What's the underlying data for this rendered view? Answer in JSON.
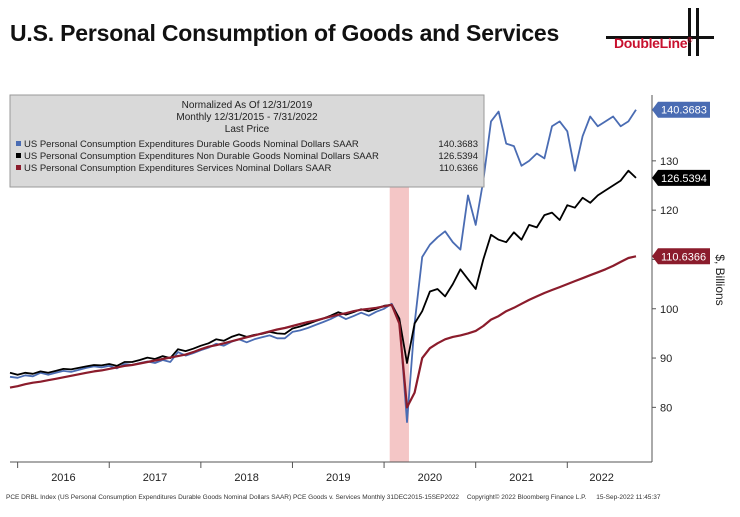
{
  "header": {
    "title": "U.S. Personal Consumption of Goods and Services",
    "logo_text": "DoubleLine",
    "logo_mark": "®"
  },
  "legend": {
    "line1": "Normalized As Of 12/31/2019",
    "line2": "Monthly 12/31/2015 - 7/31/2022",
    "line3": "Last Price"
  },
  "footer": {
    "source": "PCE DRBL Index (US Personal Consumption Expenditures Durable Goods Nominal Dollars SAAR) PCE Goods v. Services  Monthly 31DEC2015-15SEP2022",
    "copyright": "Copyright© 2022 Bloomberg Finance L.P.",
    "timestamp": "15-Sep-2022 11:45:37"
  },
  "colors": {
    "durable": "#4a6cb3",
    "nondurable": "#000000",
    "services": "#8b1c2c",
    "recession": "#f0b3b3"
  },
  "chart_data": {
    "type": "line",
    "title": "",
    "ylabel": "$, Billions",
    "xlabel": "",
    "x_start": "2015-12",
    "x_end": "2022-07",
    "frequency": "monthly",
    "ylim": [
      75,
      145
    ],
    "y_ticks": [
      80,
      90,
      100,
      110,
      120,
      130
    ],
    "x_tick_labels": [
      "2016",
      "2017",
      "2018",
      "2019",
      "2020",
      "2021",
      "2022"
    ],
    "recession_shading": {
      "start": "2020-02",
      "end": "2020-04"
    },
    "series": [
      {
        "name": "US Personal Consumption Expenditures Durable Goods Nominal Dollars SAAR",
        "last": "140.3683",
        "values": [
          86.2,
          86.0,
          86.5,
          86.3,
          87.0,
          86.6,
          87.0,
          87.4,
          87.2,
          87.6,
          88.0,
          88.3,
          88.1,
          88.4,
          87.9,
          88.8,
          88.6,
          89.0,
          89.3,
          89.0,
          89.6,
          89.2,
          91.2,
          90.5,
          91.0,
          91.6,
          92.1,
          92.9,
          92.5,
          93.3,
          93.8,
          93.2,
          93.8,
          94.2,
          94.6,
          94.0,
          94.0,
          95.3,
          95.6,
          96.1,
          96.7,
          97.3,
          97.9,
          98.7,
          97.9,
          98.5,
          99.2,
          98.6,
          99.4,
          100.0,
          101.0,
          98.0,
          77.0,
          97.0,
          110.5,
          113.0,
          114.5,
          115.7,
          113.5,
          112.0,
          123.0,
          117.0,
          126.0,
          138.0,
          140.0,
          133.5,
          133.0,
          129.0,
          130.0,
          131.5,
          130.5,
          137.0,
          138.0,
          136.0,
          128.0,
          135.0,
          139.0,
          137.0,
          138.0,
          139.0,
          137.0,
          138.0,
          140.3683
        ]
      },
      {
        "name": "US Personal Consumption Expenditures Non Durable Goods Nominal Dollars SAAR",
        "last": "126.5394",
        "values": [
          87.0,
          86.6,
          87.0,
          86.8,
          87.3,
          87.0,
          87.4,
          87.8,
          87.7,
          88.0,
          88.3,
          88.6,
          88.5,
          88.8,
          88.4,
          89.2,
          89.2,
          89.6,
          90.1,
          89.8,
          90.4,
          90.0,
          91.8,
          91.4,
          91.9,
          92.5,
          93.0,
          93.8,
          93.5,
          94.3,
          94.8,
          94.3,
          94.7,
          94.9,
          95.3,
          95.0,
          94.9,
          96.0,
          96.4,
          96.9,
          97.5,
          98.0,
          98.6,
          99.3,
          98.8,
          99.3,
          99.9,
          99.5,
          100.0,
          100.6,
          100.8,
          98.0,
          89.0,
          97.0,
          99.5,
          103.5,
          104.0,
          102.5,
          105.0,
          108.0,
          106.0,
          104.0,
          110.0,
          115.0,
          114.0,
          113.5,
          115.5,
          114.0,
          117.0,
          116.5,
          119.0,
          119.5,
          118.0,
          121.0,
          120.5,
          122.5,
          121.5,
          123.0,
          124.0,
          125.0,
          126.0,
          128.0,
          126.5394
        ]
      },
      {
        "name": "US Personal Consumption Expenditures Services Nominal Dollars SAAR",
        "last": "110.6366",
        "values": [
          84.0,
          84.3,
          84.7,
          85.0,
          85.2,
          85.5,
          85.8,
          86.1,
          86.4,
          86.7,
          87.0,
          87.3,
          87.5,
          87.8,
          88.1,
          88.4,
          88.6,
          88.9,
          89.2,
          89.5,
          89.8,
          90.1,
          90.4,
          90.7,
          91.2,
          91.8,
          92.3,
          92.6,
          93.0,
          93.4,
          93.8,
          94.2,
          94.6,
          95.0,
          95.4,
          95.8,
          96.1,
          96.5,
          96.9,
          97.3,
          97.6,
          98.0,
          98.4,
          98.8,
          99.1,
          99.5,
          99.8,
          100.0,
          100.2,
          100.5,
          100.8,
          97.0,
          80.0,
          83.0,
          90.0,
          92.0,
          93.0,
          93.8,
          94.3,
          94.6,
          95.0,
          95.5,
          96.5,
          97.8,
          98.5,
          99.5,
          100.2,
          101.0,
          101.8,
          102.5,
          103.2,
          103.8,
          104.4,
          105.0,
          105.6,
          106.2,
          106.8,
          107.4,
          108.0,
          108.7,
          109.5,
          110.3,
          110.6366
        ]
      }
    ]
  }
}
